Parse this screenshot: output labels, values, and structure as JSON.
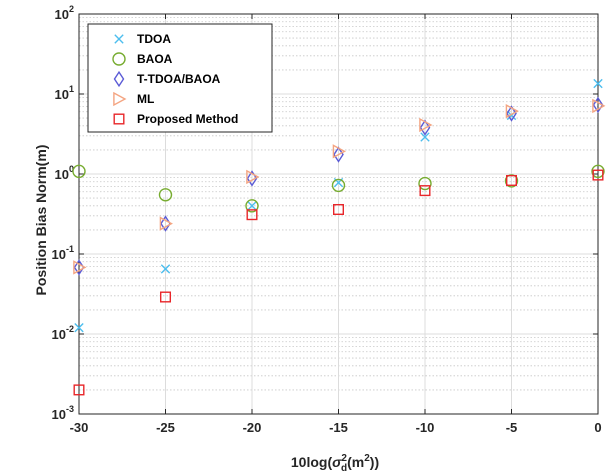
{
  "chart_data": {
    "type": "scatter",
    "x_scale": "linear",
    "y_scale": "log",
    "xlim": [
      -30,
      0
    ],
    "ylim": [
      0.001,
      100
    ],
    "x_ticks": [
      -30,
      -25,
      -20,
      -15,
      -10,
      -5,
      0
    ],
    "x_tick_labels": [
      "-30",
      "-25",
      "-20",
      "-15",
      "-10",
      "-5",
      "0"
    ],
    "y_ticks": [
      0.001,
      0.01,
      0.1,
      1,
      10,
      100
    ],
    "y_tick_labels": [
      {
        "base": "10",
        "exp": "-3"
      },
      {
        "base": "10",
        "exp": "-2"
      },
      {
        "base": "10",
        "exp": "-1"
      },
      {
        "base": "10",
        "exp": "0"
      },
      {
        "base": "10",
        "exp": "1"
      },
      {
        "base": "10",
        "exp": "2"
      }
    ],
    "grid": true,
    "minor_grid": true,
    "legend_position": "top-left",
    "ylabel": "Position Bias Norm(m)",
    "xlabel_parts": {
      "prefix": "10log(",
      "sigma": "σ",
      "sub": "d",
      "sup": "2",
      "suffix": "(m",
      "unit_sup": "2",
      "end": "))"
    },
    "x": [
      -30,
      -25,
      -20,
      -15,
      -10,
      -5,
      0
    ],
    "series": [
      {
        "name": "TDOA",
        "marker": "x",
        "color": "#4DBEEE",
        "values": [
          0.012,
          0.065,
          0.4,
          0.78,
          2.9,
          5.4,
          13.5
        ]
      },
      {
        "name": "BAOA",
        "marker": "circle",
        "color": "#77AC30",
        "values": [
          1.08,
          0.55,
          0.4,
          0.72,
          0.76,
          0.82,
          1.08
        ]
      },
      {
        "name": "T-TDOA/BAOA",
        "marker": "diamond",
        "color": "#5B5BD6",
        "values": [
          0.068,
          0.24,
          0.88,
          1.75,
          3.8,
          5.7,
          7.3
        ]
      },
      {
        "name": "ML",
        "marker": "triangle-right",
        "color": "#F4A582",
        "values": [
          0.068,
          0.24,
          0.92,
          1.92,
          4.1,
          6.1,
          7.1
        ]
      },
      {
        "name": "Proposed Method",
        "marker": "square",
        "color": "#E8262A",
        "values": [
          0.002,
          0.029,
          0.31,
          0.36,
          0.62,
          0.83,
          0.97
        ]
      }
    ]
  }
}
